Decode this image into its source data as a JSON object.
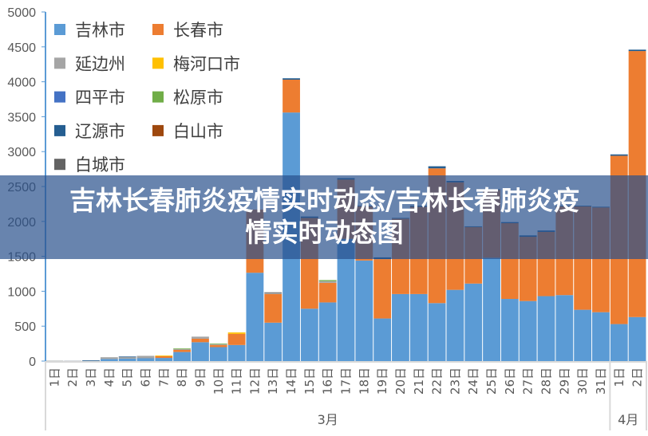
{
  "chart_data": {
    "type": "bar",
    "stacked": true,
    "title": "",
    "xlabel": "",
    "ylabel": "",
    "ylim": [
      0,
      5000
    ],
    "yticks": [
      0,
      500,
      1000,
      1500,
      2000,
      2500,
      3000,
      3500,
      4000,
      4500,
      5000
    ],
    "grid": false,
    "legend_position": "top-left",
    "categories": [
      "1日",
      "2日",
      "3日",
      "4日",
      "5日",
      "6日",
      "7日",
      "8日",
      "9日",
      "10日",
      "11日",
      "12日",
      "13日",
      "14日",
      "15日",
      "16日",
      "17日",
      "18日",
      "19日",
      "20日",
      "21日",
      "22日",
      "23日",
      "24日",
      "25日",
      "26日",
      "27日",
      "28日",
      "29日",
      "30日",
      "31日",
      "1日",
      "2日"
    ],
    "groups": [
      {
        "label": "3月",
        "count": 31
      },
      {
        "label": "4月",
        "count": 2
      }
    ],
    "series": [
      {
        "name": "吉林市",
        "color": "#5b9bd5",
        "values": [
          2,
          2,
          3,
          30,
          35,
          40,
          45,
          130,
          270,
          200,
          230,
          1265,
          550,
          3560,
          750,
          840,
          1750,
          1440,
          610,
          960,
          960,
          830,
          1020,
          1110,
          1480,
          890,
          860,
          930,
          945,
          735,
          700,
          530,
          630
        ]
      },
      {
        "name": "长春市",
        "color": "#ed7d31",
        "values": [
          0,
          0,
          0,
          0,
          0,
          0,
          25,
          30,
          50,
          30,
          160,
          905,
          410,
          470,
          1300,
          280,
          850,
          780,
          850,
          1080,
          1250,
          1930,
          1540,
          810,
          970,
          1085,
          920,
          920,
          1270,
          1480,
          1500,
          2410,
          3810
        ]
      },
      {
        "name": "延边州",
        "color": "#a5a5a5",
        "values": [
          3,
          2,
          3,
          25,
          25,
          35,
          0,
          15,
          30,
          15,
          0,
          0,
          15,
          0,
          0,
          25,
          0,
          0,
          0,
          0,
          0,
          0,
          0,
          0,
          0,
          0,
          0,
          0,
          0,
          0,
          0,
          0,
          0
        ]
      },
      {
        "name": "梅河口市",
        "color": "#ffc000",
        "values": [
          0,
          0,
          0,
          0,
          0,
          0,
          10,
          0,
          0,
          0,
          20,
          0,
          0,
          0,
          0,
          0,
          0,
          0,
          0,
          0,
          0,
          0,
          0,
          0,
          0,
          0,
          0,
          0,
          0,
          0,
          0,
          0,
          0
        ]
      },
      {
        "name": "四平市",
        "color": "#4472c4",
        "values": [
          0,
          0,
          0,
          0,
          0,
          0,
          0,
          0,
          0,
          0,
          0,
          0,
          0,
          0,
          0,
          0,
          0,
          0,
          0,
          0,
          0,
          0,
          0,
          0,
          0,
          0,
          0,
          0,
          0,
          0,
          0,
          0,
          0
        ]
      },
      {
        "name": "松原市",
        "color": "#70ad47",
        "values": [
          0,
          0,
          0,
          0,
          0,
          0,
          0,
          5,
          0,
          5,
          0,
          0,
          0,
          0,
          0,
          15,
          0,
          0,
          0,
          0,
          0,
          0,
          0,
          0,
          0,
          0,
          0,
          0,
          0,
          0,
          0,
          0,
          0
        ]
      },
      {
        "name": "辽源市",
        "color": "#255e91",
        "values": [
          0,
          0,
          4,
          0,
          5,
          0,
          0,
          0,
          0,
          0,
          0,
          0,
          0,
          20,
          20,
          0,
          20,
          5,
          25,
          10,
          15,
          30,
          20,
          10,
          10,
          15,
          20,
          20,
          10,
          10,
          10,
          20,
          20
        ]
      },
      {
        "name": "白山市",
        "color": "#9e480e",
        "values": [
          0,
          0,
          0,
          0,
          0,
          0,
          0,
          0,
          0,
          0,
          0,
          0,
          0,
          0,
          0,
          0,
          0,
          0,
          0,
          0,
          0,
          0,
          0,
          0,
          0,
          0,
          0,
          0,
          0,
          0,
          0,
          0,
          0
        ]
      },
      {
        "name": "白城市",
        "color": "#636363",
        "values": [
          0,
          0,
          0,
          0,
          0,
          0,
          0,
          0,
          0,
          0,
          0,
          0,
          10,
          0,
          0,
          0,
          0,
          0,
          0,
          0,
          0,
          0,
          0,
          0,
          0,
          0,
          0,
          0,
          0,
          0,
          0,
          0,
          0
        ]
      }
    ]
  },
  "banner": {
    "title": "吉林长春肺炎疫情实时动态/吉林长春肺炎疫情实时动态图"
  }
}
